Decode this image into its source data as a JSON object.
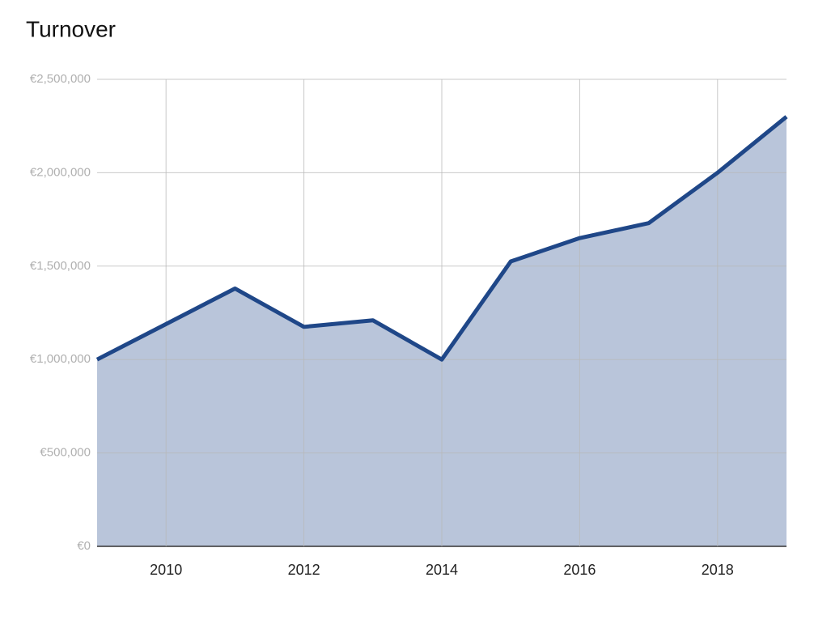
{
  "chart_data": {
    "type": "area",
    "title": "Turnover",
    "x": [
      2009,
      2010,
      2011,
      2012,
      2013,
      2014,
      2015,
      2016,
      2017,
      2018,
      2019
    ],
    "values": [
      1000000,
      1190000,
      1380000,
      1175000,
      1210000,
      1000000,
      1525000,
      1650000,
      1730000,
      2000000,
      2300000
    ],
    "color": "#1f4788",
    "fill_color": "#b9c5da",
    "xlim": [
      2009,
      2019
    ],
    "xticks": [
      2010,
      2012,
      2014,
      2016,
      2018
    ],
    "ylim": [
      0,
      2500000
    ],
    "yticks": [
      {
        "value": 0,
        "label": "€0"
      },
      {
        "value": 500000,
        "label": "€500,000"
      },
      {
        "value": 1000000,
        "label": "€1,000,000"
      },
      {
        "value": 1500000,
        "label": "€1,500,000"
      },
      {
        "value": 2000000,
        "label": "€2,000,000"
      },
      {
        "value": 2500000,
        "label": "€2,500,000"
      }
    ],
    "grid": true
  }
}
